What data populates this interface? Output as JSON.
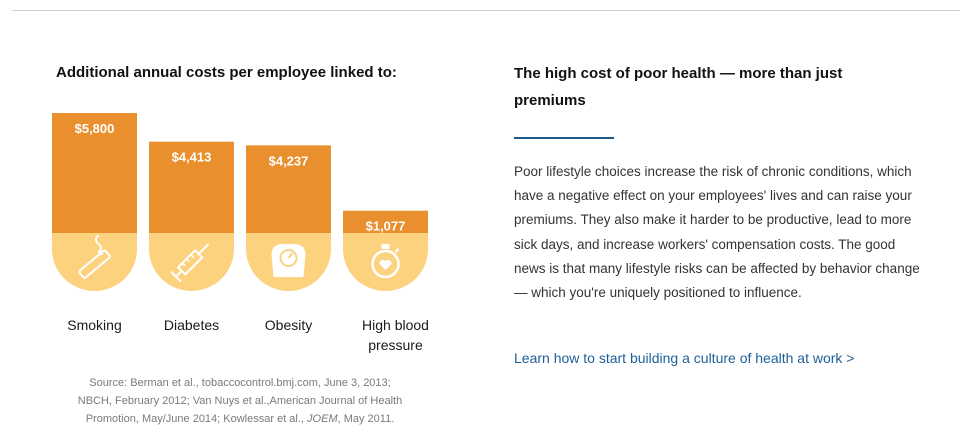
{
  "chart_data": {
    "type": "bar",
    "title": "Additional annual costs per employee linked to:",
    "categories": [
      "Smoking",
      "Diabetes",
      "Obesity",
      "High blood pressure"
    ],
    "values": [
      5800,
      4413,
      4237,
      1077
    ],
    "value_labels": [
      "$5,800",
      "$4,413",
      "$4,237",
      "$1,077"
    ],
    "icons": [
      "cigarette-icon",
      "syringe-icon",
      "scale-icon",
      "stopwatch-icon"
    ],
    "colors": {
      "bar": "#e98f2e",
      "icon_base": "#fcd27f",
      "label_text": "#ffffff"
    },
    "source_lines": [
      "Source: Berman et al., tobaccocontrol.bmj.com, June 3, 2013;",
      "NBCH, February 2012; Van Nuys et al.,American Journal of Health",
      "Promotion, May/June 2014; Kowlessar et al.,",
      "JOEM",
      ", May 2011."
    ]
  },
  "panel": {
    "title": "The high cost of poor health — more than just premiums",
    "body": "Poor lifestyle choices increase the risk of chronic conditions, which have a negative effect on your employees' lives and can raise your premiums. They also make it harder to be productive, lead to more sick days, and increase workers' compensation costs. The good news is that many lifestyle risks can be affected by behavior change — which you're uniquely positioned to influence.",
    "link": "Learn how to start building a culture of health at work >",
    "rule_color": "#1a5a8a",
    "link_color": "#1e5f99"
  }
}
